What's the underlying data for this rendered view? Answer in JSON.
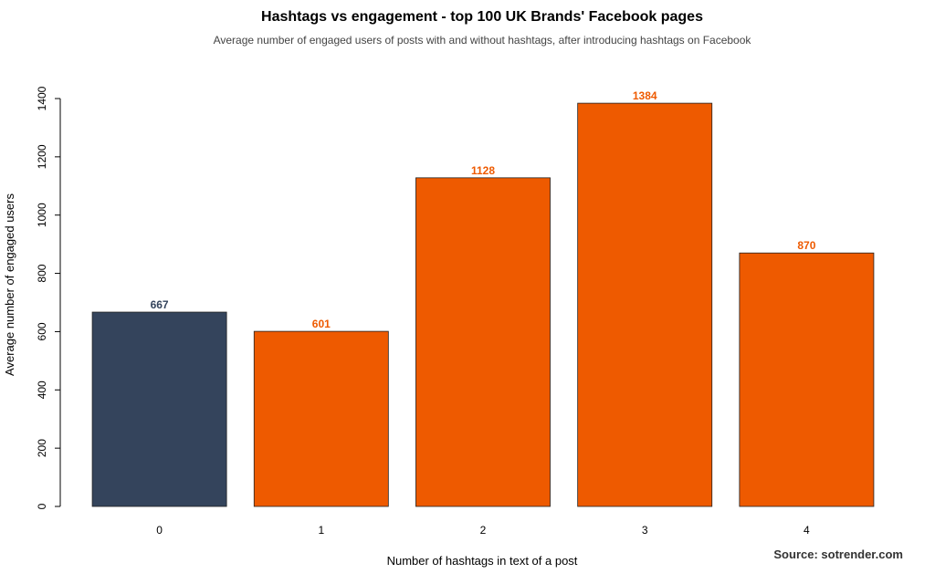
{
  "chart_data": {
    "type": "bar",
    "title": "Hashtags vs engagement - top 100 UK Brands' Facebook pages",
    "subtitle": "Average number of engaged users of posts with and without hashtags, after introducing hashtags on Facebook",
    "xlabel": "Number of hashtags in text of a post",
    "ylabel": "Average number of engaged users",
    "categories": [
      "0",
      "1",
      "2",
      "3",
      "4"
    ],
    "values": [
      667,
      601,
      1128,
      1384,
      870
    ],
    "value_labels": [
      "667",
      "601",
      "1128",
      "1384",
      "870"
    ],
    "ylim": [
      0,
      1400
    ],
    "yticks": [
      0,
      200,
      400,
      600,
      800,
      1000,
      1200,
      1400
    ],
    "ytick_labels": [
      "0",
      "200",
      "400",
      "600",
      "800",
      "1000",
      "1200",
      "1400"
    ],
    "grid": false,
    "bar_colors": [
      "#34445c",
      "#ee5a00",
      "#ee5a00",
      "#ee5a00",
      "#ee5a00"
    ],
    "label_colors": [
      "#34445c",
      "#ee5a00",
      "#ee5a00",
      "#ee5a00",
      "#ee5a00"
    ],
    "source": "Source: sotrender.com"
  }
}
